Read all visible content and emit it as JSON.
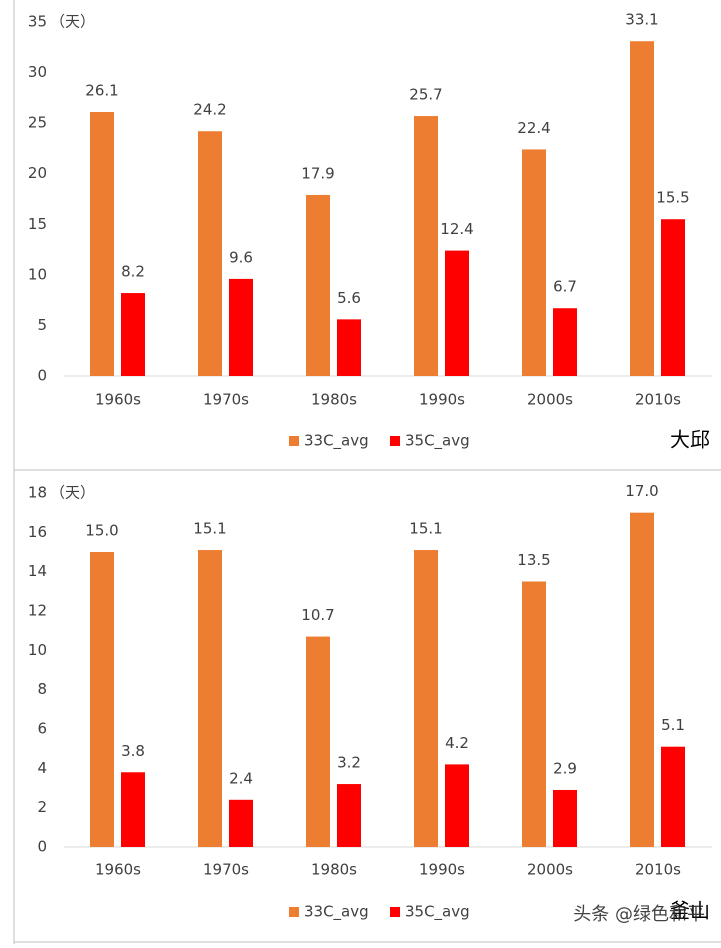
{
  "chart_data": [
    {
      "type": "bar",
      "y_unit": "（天）",
      "corner_label": "大邱",
      "categories": [
        "1960s",
        "1970s",
        "1980s",
        "1990s",
        "2000s",
        "2010s"
      ],
      "series": [
        {
          "name": "33C_avg",
          "color": "#ED7D31",
          "values": [
            26.1,
            24.2,
            17.9,
            25.7,
            22.4,
            33.1
          ]
        },
        {
          "name": "35C_avg",
          "color": "#FF0000",
          "values": [
            8.2,
            9.6,
            5.6,
            12.4,
            6.7,
            15.5
          ]
        }
      ],
      "ylim": [
        0,
        35
      ],
      "yticks": [
        0,
        5,
        10,
        15,
        20,
        25,
        30,
        35
      ],
      "grid": false
    },
    {
      "type": "bar",
      "y_unit": "（天）",
      "corner_label": "釜山",
      "watermark": "头条 @绿色和平",
      "categories": [
        "1960s",
        "1970s",
        "1980s",
        "1990s",
        "2000s",
        "2010s"
      ],
      "series": [
        {
          "name": "33C_avg",
          "color": "#ED7D31",
          "values": [
            15.0,
            15.1,
            10.7,
            15.1,
            13.5,
            17.0
          ],
          "value_labels": [
            "15.0",
            "15.1",
            "10.7",
            "15.1",
            "13.5",
            "17.0"
          ]
        },
        {
          "name": "35C_avg",
          "color": "#FF0000",
          "values": [
            3.8,
            2.4,
            3.2,
            4.2,
            2.9,
            5.1
          ]
        }
      ],
      "ylim": [
        0,
        18
      ],
      "yticks": [
        0,
        2,
        4,
        6,
        8,
        10,
        12,
        14,
        16,
        18
      ],
      "grid": false
    }
  ]
}
